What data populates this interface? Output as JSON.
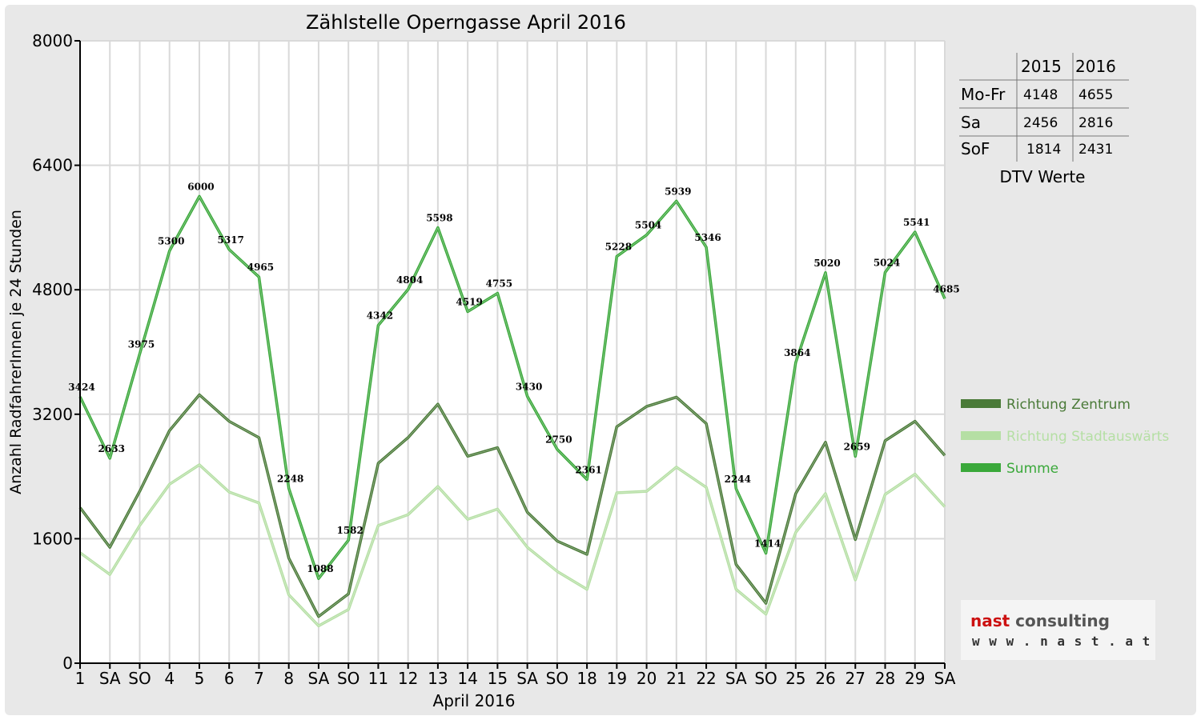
{
  "chart_data": {
    "type": "line",
    "title": "Zählstelle Operngasse April 2016",
    "xlabel": "April 2016",
    "ylabel": "Anzahl RadfahrerInnen je 24 Stunden",
    "ylim": [
      0,
      8000
    ],
    "yticks": [
      "0",
      "1600",
      "3200",
      "4800",
      "6400",
      "8000"
    ],
    "grid": true,
    "legend_position": "right",
    "categories": [
      "1",
      "SA",
      "SO",
      "4",
      "5",
      "6",
      "7",
      "8",
      "SA",
      "SO",
      "11",
      "12",
      "13",
      "14",
      "15",
      "SA",
      "SO",
      "18",
      "19",
      "20",
      "21",
      "22",
      "SA",
      "SO",
      "25",
      "26",
      "27",
      "28",
      "29",
      "SA"
    ],
    "category_colors": [
      "#000",
      "#000",
      "#e00000",
      "#000",
      "#000",
      "#000",
      "#000",
      "#000",
      "#000",
      "#e00000",
      "#000",
      "#000",
      "#000",
      "#000",
      "#000",
      "#000",
      "#e00000",
      "#000",
      "#000",
      "#000",
      "#000",
      "#000",
      "#000",
      "#e00000",
      "#000",
      "#000",
      "#000",
      "#000",
      "#000",
      "#000"
    ],
    "series": [
      {
        "name": "Richtung Zentrum",
        "color": "#4a7a38",
        "values": [
          2000,
          1490,
          2210,
          2990,
          3450,
          3110,
          2900,
          1350,
          600,
          890,
          2570,
          2900,
          3330,
          2660,
          2770,
          1940,
          1570,
          1400,
          3040,
          3300,
          3420,
          3080,
          1270,
          770,
          2180,
          2840,
          1590,
          2860,
          3110,
          2670
        ]
      },
      {
        "name": "Richtung Stadtauswärts",
        "color": "#b5dfa4",
        "values": [
          1420,
          1140,
          1770,
          2300,
          2550,
          2200,
          2060,
          880,
          480,
          690,
          1770,
          1910,
          2270,
          1850,
          1980,
          1490,
          1180,
          950,
          2190,
          2210,
          2520,
          2260,
          950,
          630,
          1680,
          2180,
          1070,
          2170,
          2430,
          2010
        ]
      },
      {
        "name": "Summe",
        "color": "#3aa83a",
        "values": [
          3424,
          2633,
          3975,
          5300,
          6000,
          5317,
          4965,
          2248,
          1088,
          1582,
          4342,
          4804,
          5598,
          4519,
          4755,
          3430,
          2750,
          2361,
          5228,
          5504,
          5939,
          5346,
          2244,
          1414,
          3864,
          5020,
          2659,
          5024,
          5541,
          4685
        ],
        "labels": [
          "3424",
          "2633",
          "3975",
          "5300",
          "6000",
          "5317",
          "4965",
          "2248",
          "1088",
          "1582",
          "4342",
          "4804",
          "5598",
          "4519",
          "4755",
          "3430",
          "2750",
          "2361",
          "5228",
          "5504",
          "5939",
          "5346",
          "2244",
          "1414",
          "3864",
          "5020",
          "2659",
          "5024",
          "5541",
          "4685"
        ]
      }
    ]
  },
  "dtv_table": {
    "headers": [
      "2015",
      "2016"
    ],
    "rows": [
      {
        "label": "Mo-Fr",
        "v2015": "4148",
        "v2016": "4655"
      },
      {
        "label": "Sa",
        "v2015": "2456",
        "v2016": "2816"
      },
      {
        "label": "SoF",
        "v2015": "1814",
        "v2016": "2431"
      }
    ],
    "caption": "DTV Werte"
  },
  "logo": {
    "name_part1": "nast",
    "name_part2": " consulting",
    "url": "w w w . n a s t . a t",
    "color_part1": "#cc1111",
    "color_part2": "#555555"
  }
}
